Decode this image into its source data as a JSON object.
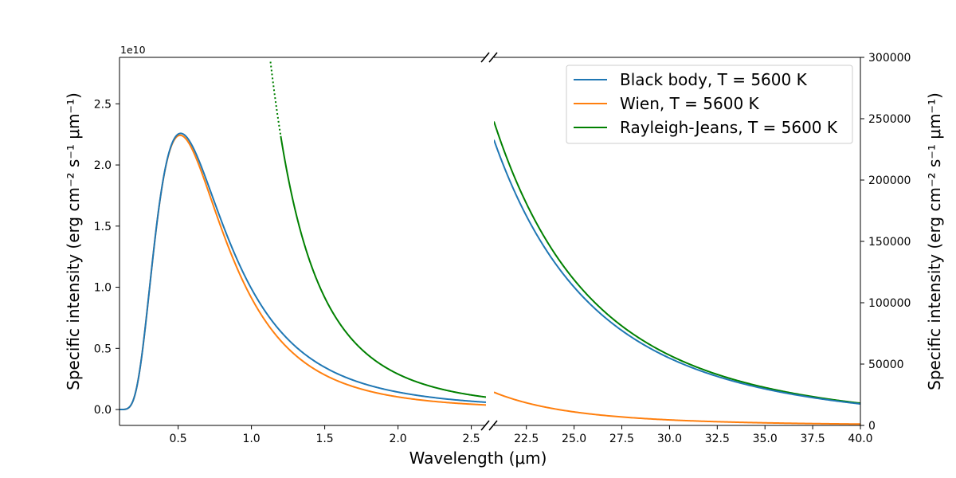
{
  "chart_data": {
    "type": "line",
    "broken_x_axis": true,
    "grid": false,
    "legend_placement": "top-right",
    "xlabel": "Wavelength (μm)",
    "ylabel_left": "Specific intensity (erg cm⁻² s⁻¹ μm⁻¹)",
    "ylabel_right": "Specific intensity (erg cm⁻² s⁻¹ μm⁻¹)",
    "y_left_offset_label": "1e10",
    "left_panel": {
      "xlim": [
        0.1,
        2.6
      ],
      "ylim": [
        -0.13,
        2.88
      ],
      "y_scale_factor": 10000000000.0,
      "xticks": [
        "0.5",
        "1.0",
        "1.5",
        "2.0",
        "2.5"
      ],
      "yticks": [
        "0.0",
        "0.5",
        "1.0",
        "1.5",
        "2.0",
        "2.5"
      ]
    },
    "right_panel": {
      "xlim": [
        20.8,
        40.0
      ],
      "ylim": [
        0,
        300000
      ],
      "xticks": [
        "22.5",
        "25.0",
        "27.5",
        "30.0",
        "32.5",
        "35.0",
        "37.5",
        "40.0"
      ],
      "yticks": [
        "0",
        "50000",
        "100000",
        "150000",
        "200000",
        "250000",
        "300000"
      ]
    },
    "temperature_K": 5600,
    "series": [
      {
        "name": "Black body, T = 5600 K",
        "color": "#1f77b4",
        "law": "planck"
      },
      {
        "name": "Wien, T = 5600 K",
        "color": "#ff7f0e",
        "law": "wien"
      },
      {
        "name": "Rayleigh-Jeans, T = 5600 K",
        "color": "#008000",
        "law": "rayleigh-jeans",
        "left_solid_from_x": 1.2,
        "left_dotted_from_x": 1.13
      }
    ]
  }
}
